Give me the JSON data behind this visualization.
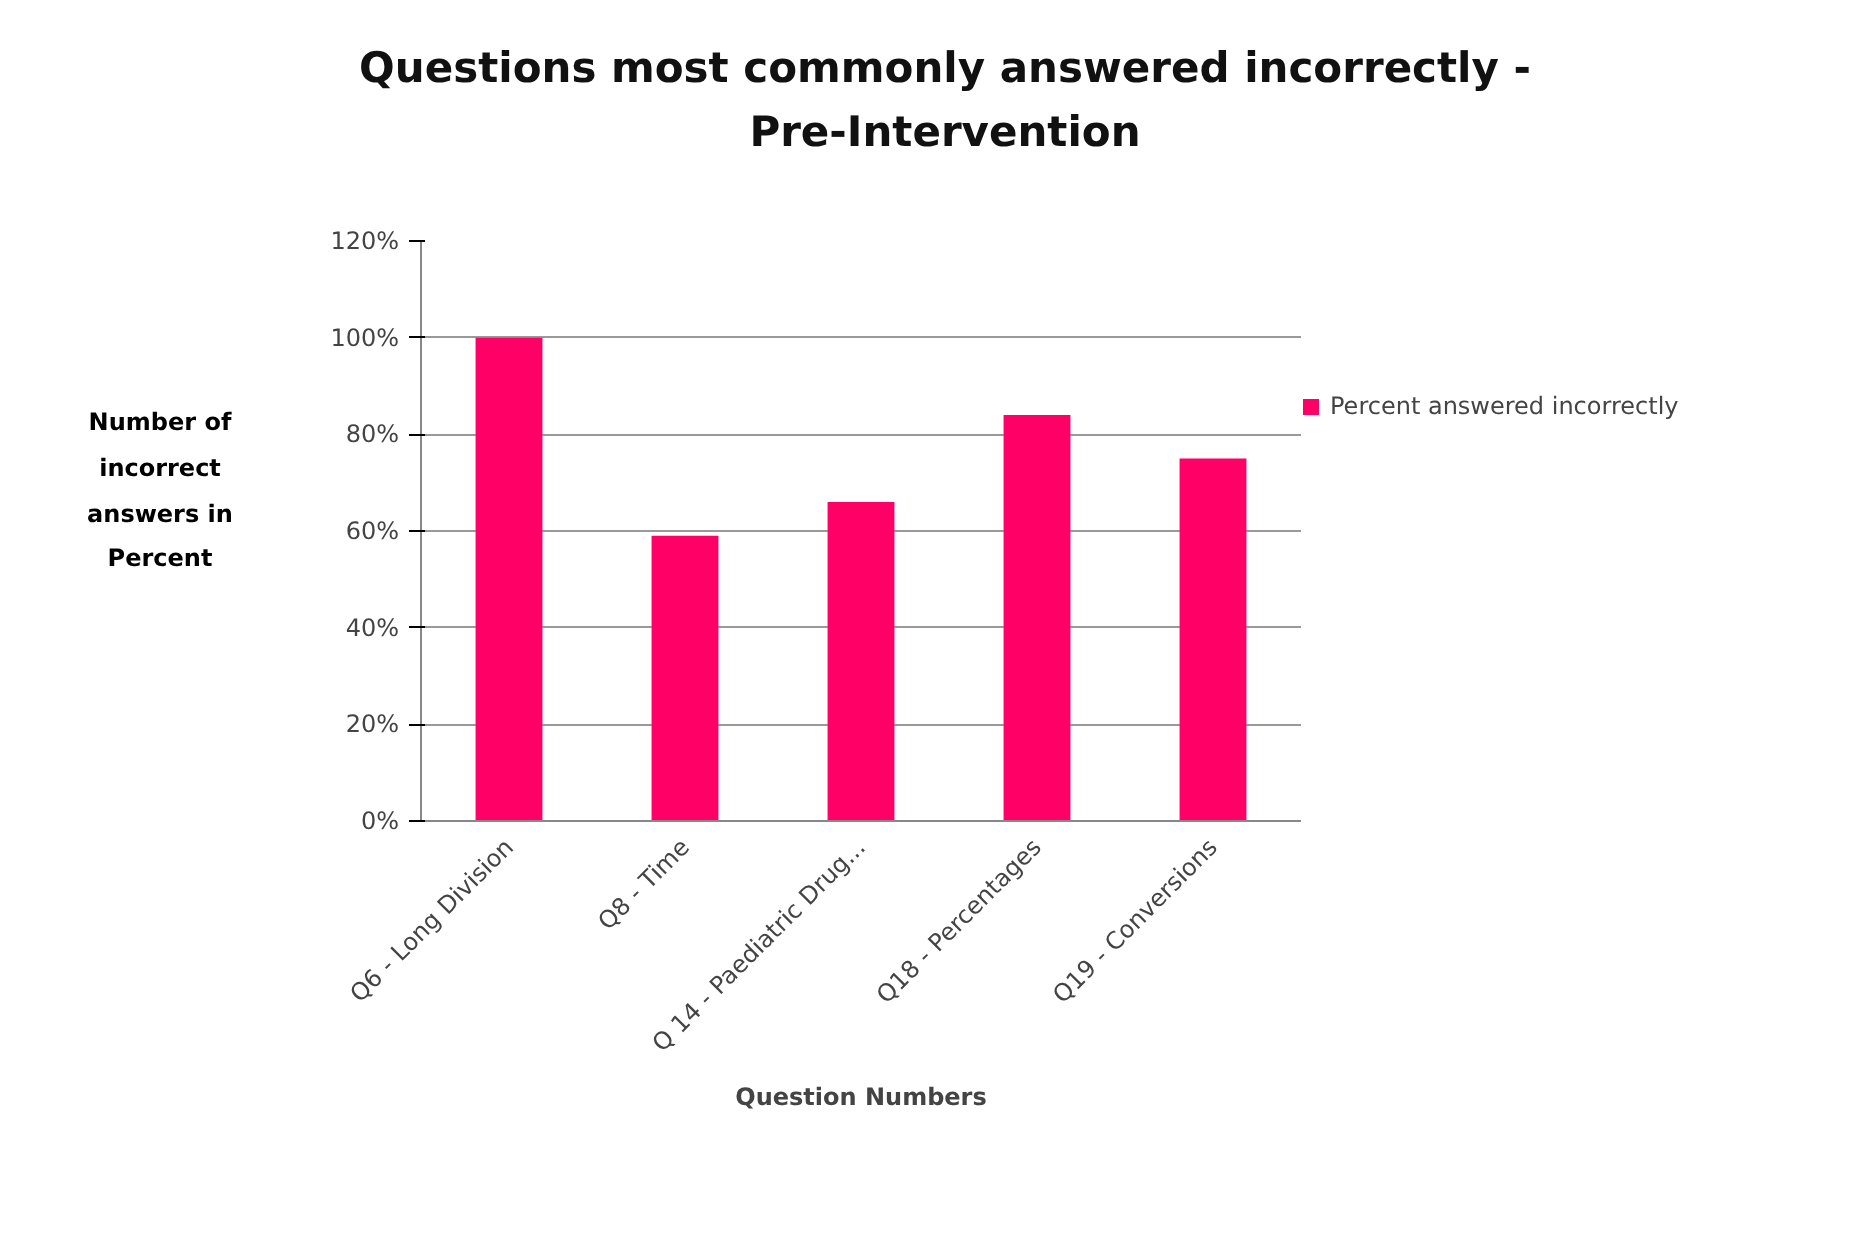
{
  "chart_data": {
    "type": "bar",
    "title": "Questions most commonly answered incorrectly -\nPre-Intervention",
    "xlabel": "Question Numbers",
    "ylabel": "Number of\nincorrect\nanswers in\nPercent",
    "categories": [
      "Q6 - Long Division",
      "Q8 - Time",
      "Q 14 - Paediatric Drug...",
      "Q18 - Percentages",
      "Q19 - Conversions"
    ],
    "series": [
      {
        "name": "Percent answered incorrectly",
        "color": "#ff0066",
        "values": [
          100,
          59,
          66,
          84,
          75
        ]
      }
    ],
    "ylim": [
      0,
      120
    ],
    "yticks": [
      {
        "value": 0,
        "label": "0%"
      },
      {
        "value": 20,
        "label": "20%"
      },
      {
        "value": 40,
        "label": "40%"
      },
      {
        "value": 60,
        "label": "60%"
      },
      {
        "value": 80,
        "label": "80%"
      },
      {
        "value": 100,
        "label": "100%"
      },
      {
        "value": 120,
        "label": "120%"
      }
    ],
    "grid": "y",
    "legend": "right"
  }
}
